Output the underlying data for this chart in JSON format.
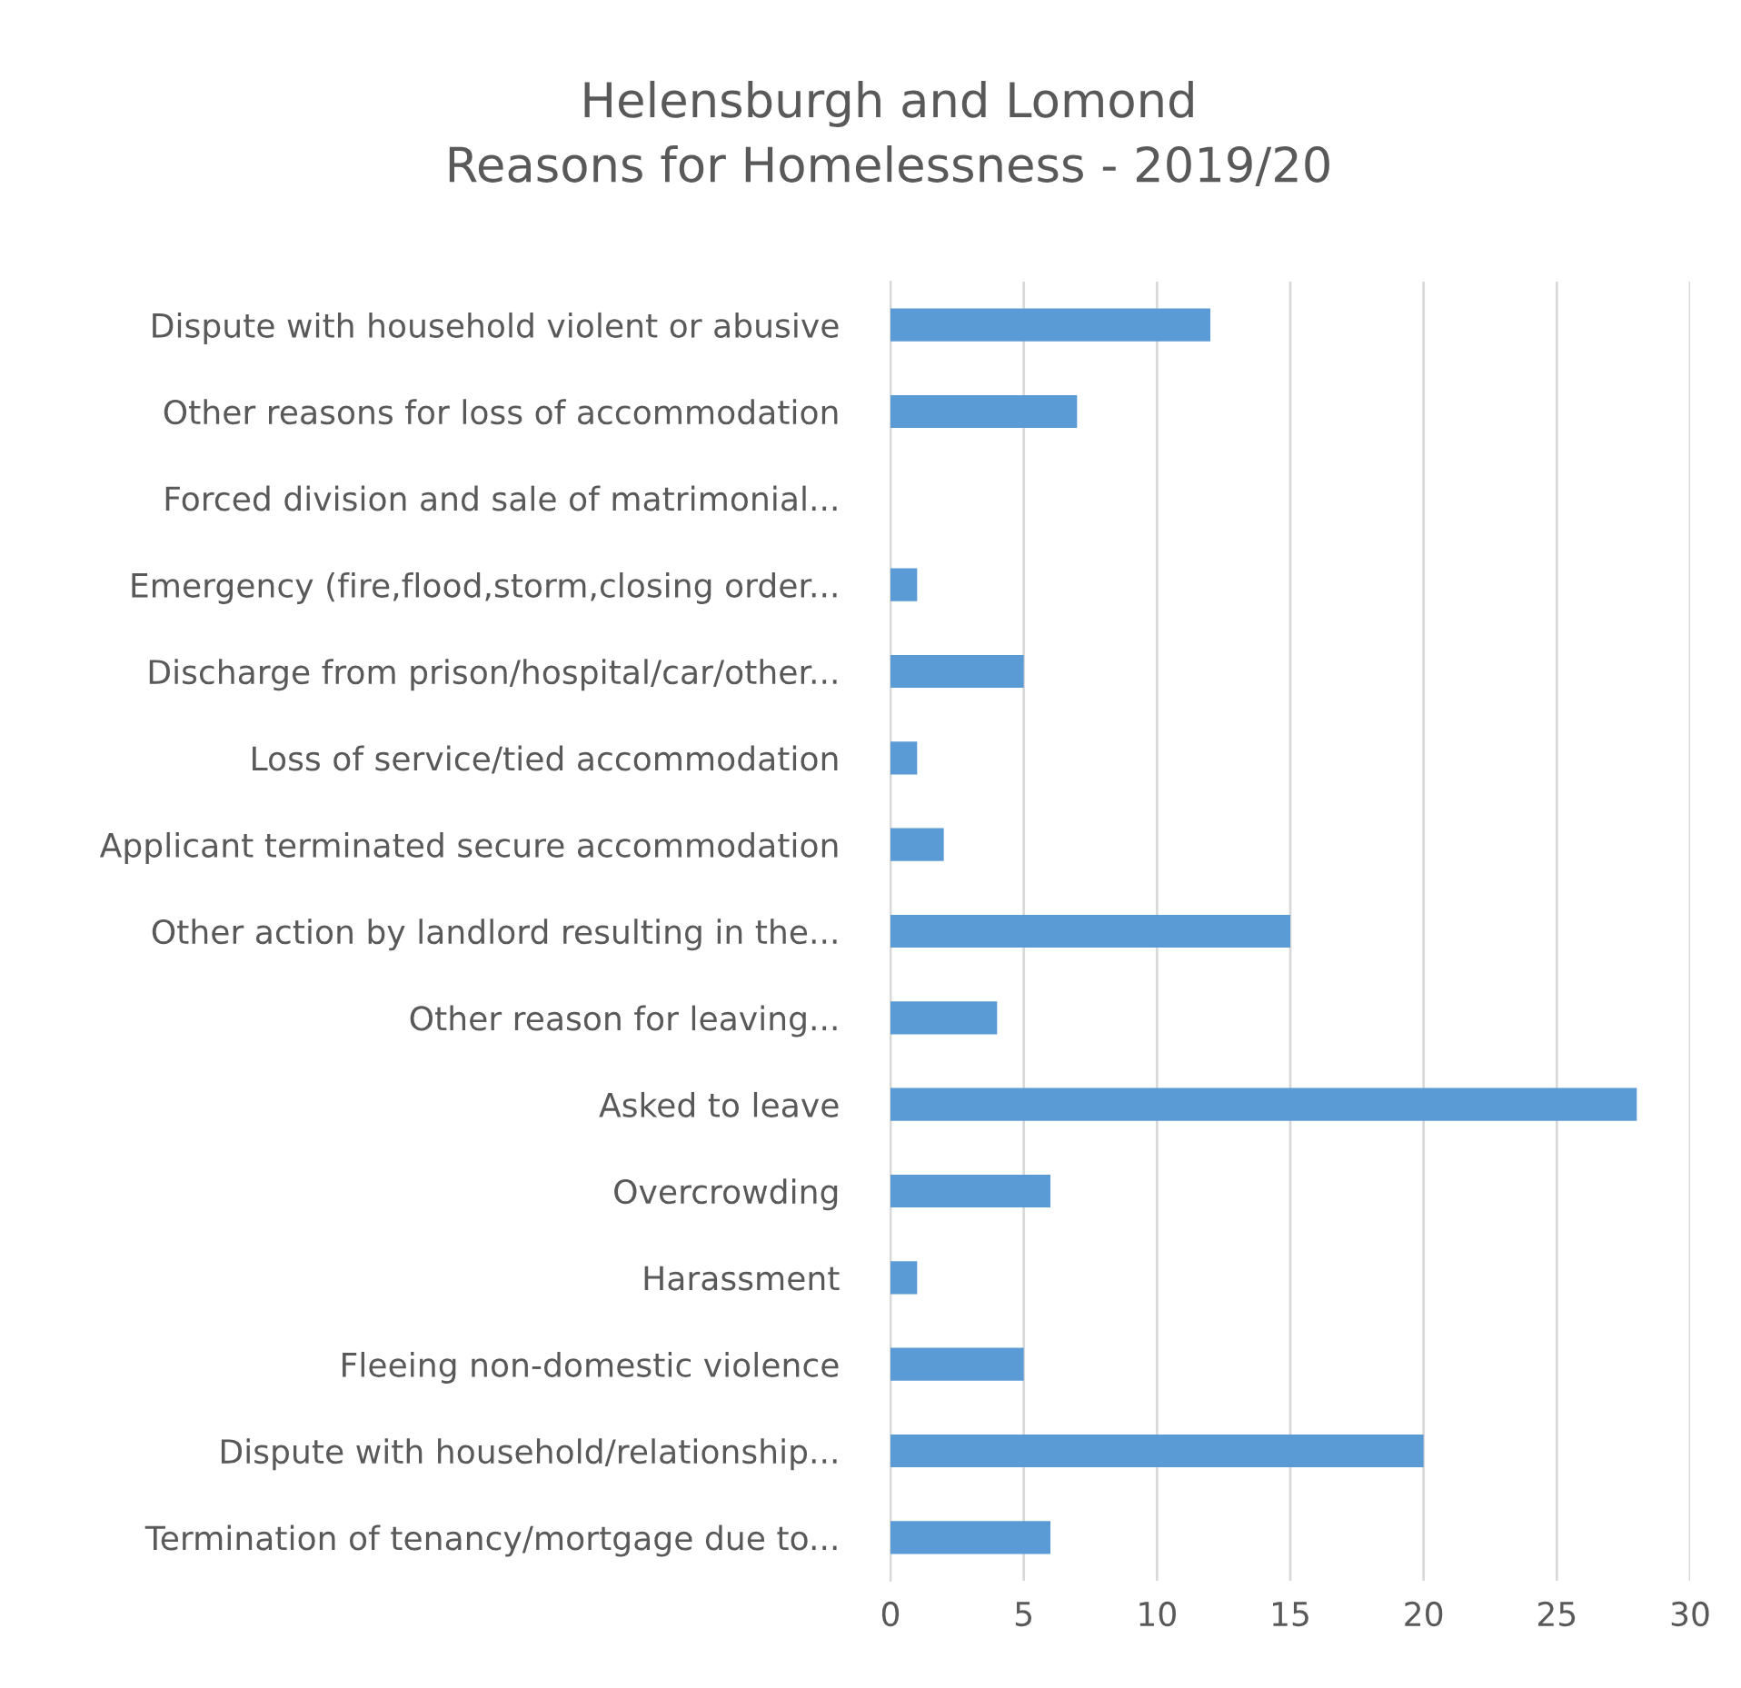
{
  "chart_data": {
    "type": "bar",
    "orientation": "horizontal",
    "title": "Helensburgh and Lomond\nReasons for Homelessness - 2019/20",
    "categories": [
      "Dispute with household violent or abusive",
      "Other reasons for loss of accommodation",
      "Forced division and sale of matrimonial...",
      "Emergency (fire,flood,storm,closing order...",
      "Discharge from prison/hospital/car/other...",
      "Loss of service/tied accommodation",
      "Applicant terminated secure accommodation",
      "Other action by landlord resulting in the...",
      "Other reason for leaving...",
      "Asked to leave",
      "Overcrowding",
      "Harassment",
      "Fleeing non-domestic violence",
      "Dispute with household/relationship...",
      "Termination of tenancy/mortgage due to..."
    ],
    "values": [
      12,
      7,
      0,
      1,
      5,
      1,
      2,
      15,
      4,
      28,
      6,
      1,
      5,
      20,
      6
    ],
    "color": "#5b9bd5",
    "xlim": [
      0,
      30
    ],
    "xticks": [
      0,
      5,
      10,
      15,
      20,
      25,
      30
    ],
    "grid": "x",
    "legend": false
  }
}
